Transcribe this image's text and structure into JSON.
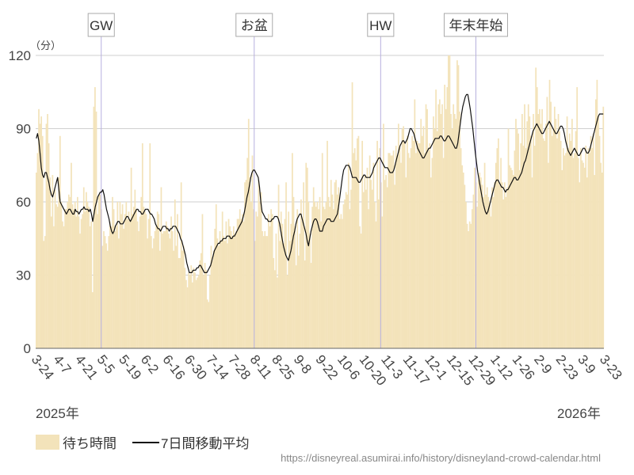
{
  "chart_data": {
    "type": "bar",
    "ylabel": "（分）",
    "ylim": [
      0,
      120
    ],
    "yticks": [
      0,
      30,
      60,
      90,
      120
    ],
    "start_date": "2025-03-24",
    "end_date": "2026-03-23",
    "x_tick_labels": [
      "3-24",
      "4-7",
      "4-21",
      "5-5",
      "5-19",
      "6-2",
      "6-16",
      "6-30",
      "7-14",
      "7-28",
      "8-11",
      "8-25",
      "9-8",
      "9-22",
      "10-6",
      "10-20",
      "11-3",
      "11-17",
      "12-1",
      "12-15",
      "12-29",
      "1-12",
      "1-26",
      "2-9",
      "2-23",
      "3-9",
      "3-23"
    ],
    "year_labels": {
      "start": "2025年",
      "end": "2026年"
    },
    "events": [
      {
        "label": "GW",
        "date": "2025-05-05"
      },
      {
        "label": "お盆",
        "date": "2025-08-11"
      },
      {
        "label": "HW",
        "date": "2025-10-31"
      },
      {
        "label": "年末年始",
        "date": "2025-12-31"
      }
    ],
    "series": [
      {
        "name": "待ち時間",
        "kind": "bar",
        "color": "#f3e3ba",
        "values": [
          72,
          80,
          98,
          92,
          95,
          87,
          44,
          46,
          92,
          96,
          84,
          70,
          54,
          71,
          50,
          65,
          59,
          58,
          70,
          87,
          60,
          52,
          50,
          57,
          57,
          60,
          63,
          62,
          76,
          59,
          57,
          60,
          54,
          62,
          54,
          47,
          53,
          55,
          66,
          56,
          64,
          60,
          58,
          50,
          52,
          23,
          99,
          107,
          97,
          55,
          63,
          63,
          57,
          42,
          48,
          46,
          43,
          40,
          46,
          52,
          50,
          62,
          57,
          48,
          50,
          60,
          45,
          60,
          55,
          59,
          49,
          55,
          60,
          53,
          56,
          52,
          74,
          55,
          58,
          65,
          57,
          52,
          48,
          54,
          62,
          84,
          58,
          56,
          55,
          45,
          53,
          84,
          46,
          41,
          45,
          48,
          50,
          56,
          55,
          40,
          66,
          47,
          48,
          48,
          52,
          50,
          47,
          45,
          54,
          48,
          40,
          61,
          42,
          55,
          37,
          37,
          68,
          40,
          42,
          33,
          28,
          25,
          31,
          30,
          34,
          27,
          33,
          31,
          28,
          29,
          30,
          36,
          39,
          55,
          30,
          35,
          32,
          20,
          19,
          30,
          42,
          36,
          40,
          49,
          59,
          45,
          42,
          48,
          44,
          56,
          46,
          44,
          52,
          43,
          53,
          50,
          48,
          46,
          50,
          47,
          48,
          53,
          53,
          57,
          53,
          55,
          52,
          68,
          69,
          78,
          94,
          70,
          60,
          79,
          57,
          44,
          56,
          54,
          69,
          60,
          64,
          48,
          46,
          48,
          46,
          46,
          55,
          50,
          57,
          55,
          37,
          32,
          47,
          29,
          67,
          44,
          56,
          51,
          43,
          53,
          68,
          30,
          56,
          44,
          51,
          80,
          62,
          50,
          34,
          57,
          38,
          47,
          61,
          52,
          68,
          36,
          76,
          74,
          60,
          47,
          35,
          58,
          66,
          60,
          58,
          60,
          57,
          62,
          52,
          80,
          58,
          57,
          60,
          85,
          62,
          58,
          69,
          63,
          57,
          68,
          69,
          63,
          66,
          53,
          55,
          53,
          59,
          61,
          64,
          63,
          76,
          57,
          65,
          109,
          80,
          82,
          77,
          86,
          87,
          50,
          47,
          85,
          64,
          71,
          65,
          74,
          57,
          79,
          69,
          65,
          76,
          60,
          52,
          85,
          61,
          82,
          68,
          54,
          92,
          69,
          71,
          66,
          80,
          80,
          79,
          79,
          81,
          67,
          83,
          79,
          92,
          82,
          76,
          90,
          91,
          84,
          70,
          87,
          80,
          78,
          82,
          87,
          85,
          102,
          80,
          85,
          84,
          84,
          94,
          87,
          91,
          80,
          100,
          98,
          81,
          84,
          70,
          78,
          95,
          90,
          106,
          89,
          100,
          102,
          96,
          100,
          78,
          108,
          98,
          107,
          120,
          120,
          96,
          90,
          100,
          96,
          94,
          118,
          116,
          97,
          82,
          75,
          72,
          67,
          60,
          51,
          48,
          52,
          51,
          57,
          63,
          74,
          68,
          58,
          69,
          72,
          70,
          67,
          62,
          76,
          63,
          66,
          62,
          60,
          54,
          66,
          62,
          68,
          76,
          82,
          86,
          67,
          78,
          68,
          61,
          68,
          62,
          66,
          90,
          75,
          74,
          73,
          71,
          81,
          94,
          90,
          88,
          73,
          84,
          96,
          83,
          100,
          82,
          93,
          100,
          95,
          87,
          70,
          96,
          83,
          115,
          107,
          96,
          98,
          92,
          98,
          86,
          85,
          92,
          103,
          76,
          110,
          101,
          87,
          90,
          99,
          94,
          86,
          96,
          89,
          85,
          73,
          82,
          79,
          80,
          95,
          82,
          88,
          85,
          94,
          78,
          80,
          89,
          107,
          78,
          68,
          82,
          77,
          76,
          74,
          83,
          70,
          82,
          80,
          87,
          82,
          88,
          71,
          102,
          110,
          95,
          87,
          76,
          72,
          99
        ]
      },
      {
        "name": "7日間移動平均",
        "kind": "line",
        "color": "#111111",
        "values": [
          86,
          88,
          85,
          80,
          74,
          71,
          70,
          72,
          72,
          70,
          68,
          65,
          63,
          62,
          64,
          66,
          68,
          70,
          65,
          60,
          59,
          58,
          57,
          56,
          55,
          56,
          57,
          57,
          56,
          55,
          55,
          57,
          56,
          56,
          55,
          56,
          57,
          57,
          58,
          57,
          57,
          57,
          56,
          57,
          55,
          52,
          55,
          58,
          60,
          62,
          63,
          64,
          64,
          65,
          63,
          60,
          57,
          55,
          53,
          50,
          48,
          47,
          48,
          50,
          51,
          52,
          52,
          51,
          51,
          51,
          52,
          53,
          54,
          54,
          53,
          52,
          53,
          54,
          55,
          56,
          57,
          57,
          56,
          56,
          55,
          55,
          56,
          57,
          57,
          57,
          56,
          55,
          55,
          54,
          53,
          51,
          50,
          49,
          49,
          48,
          49,
          50,
          50,
          50,
          49,
          49,
          48,
          49,
          49,
          50,
          50,
          50,
          49,
          48,
          47,
          45,
          44,
          42,
          40,
          38,
          35,
          33,
          31,
          31,
          31,
          32,
          32,
          32,
          33,
          33,
          34,
          34,
          33,
          32,
          31,
          31,
          31,
          32,
          33,
          34,
          36,
          38,
          40,
          41,
          42,
          43,
          43,
          44,
          44,
          45,
          45,
          45,
          46,
          46,
          46,
          45,
          45,
          46,
          46,
          47,
          48,
          49,
          50,
          51,
          52,
          54,
          56,
          59,
          62,
          64,
          67,
          70,
          72,
          73,
          73,
          72,
          71,
          70,
          66,
          60,
          56,
          55,
          54,
          53,
          53,
          52,
          52,
          52,
          53,
          53,
          54,
          54,
          54,
          53,
          51,
          48,
          45,
          42,
          40,
          38,
          37,
          36,
          38,
          40,
          43,
          46,
          48,
          51,
          53,
          54,
          55,
          55,
          53,
          51,
          49,
          47,
          44,
          42,
          45,
          48,
          50,
          52,
          53,
          53,
          52,
          50,
          48,
          48,
          48,
          50,
          51,
          52,
          53,
          53,
          53,
          52,
          52,
          52,
          53,
          54,
          55,
          58,
          62,
          66,
          70,
          73,
          74,
          75,
          75,
          75,
          74,
          72,
          70,
          70,
          70,
          70,
          69,
          68,
          68,
          69,
          70,
          71,
          71,
          70,
          70,
          70,
          70,
          71,
          72,
          74,
          75,
          76,
          77,
          78,
          78,
          77,
          76,
          75,
          74,
          74,
          74,
          73,
          72,
          72,
          72,
          73,
          75,
          77,
          79,
          81,
          83,
          84,
          85,
          85,
          84,
          85,
          86,
          88,
          90,
          90,
          89,
          88,
          86,
          84,
          82,
          81,
          80,
          79,
          78,
          78,
          79,
          80,
          81,
          82,
          82,
          83,
          84,
          85,
          86,
          86,
          86,
          86,
          87,
          87,
          86,
          85,
          85,
          86,
          87,
          87,
          86,
          85,
          84,
          83,
          82,
          82,
          84,
          88,
          92,
          96,
          99,
          101,
          103,
          104,
          104,
          101,
          98,
          94,
          90,
          85,
          80,
          76,
          72,
          69,
          66,
          63,
          60,
          58,
          56,
          55,
          56,
          58,
          60,
          62,
          64,
          66,
          68,
          69,
          69,
          68,
          67,
          66,
          66,
          65,
          64,
          65,
          65,
          66,
          67,
          68,
          69,
          70,
          70,
          69,
          69,
          70,
          71,
          72,
          74,
          76,
          77,
          79,
          81,
          83,
          85,
          87,
          89,
          90,
          91,
          92,
          91,
          90,
          89,
          88,
          88,
          89,
          90,
          91,
          92,
          93,
          92,
          91,
          90,
          89,
          88,
          88,
          89,
          90,
          91,
          91,
          90,
          88,
          85,
          83,
          81,
          80,
          79,
          80,
          81,
          82,
          81,
          80,
          79,
          79,
          80,
          81,
          82,
          82,
          81,
          80,
          80,
          81,
          83,
          85,
          87,
          89,
          91,
          93,
          95,
          96,
          96,
          96,
          96
        ]
      }
    ]
  },
  "legend": {
    "bar_label": "待ち時間",
    "line_label": "7日間移動平均"
  },
  "source_text": "https://disneyreal.asumirai.info/history/disneyland-crowd-calendar.html"
}
